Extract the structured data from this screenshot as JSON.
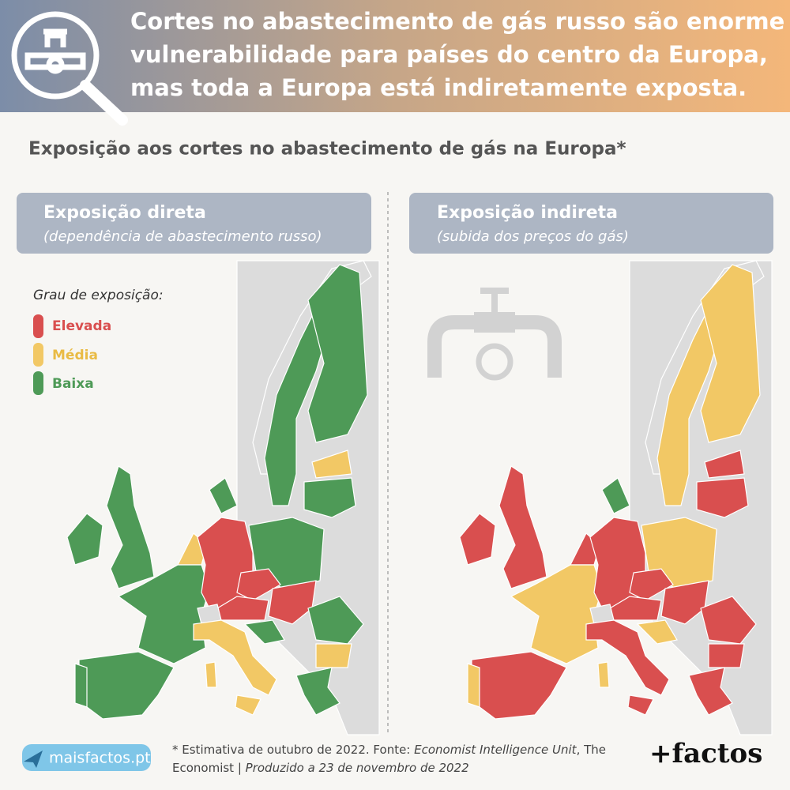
{
  "header": {
    "title_lines": [
      "Cortes no abastecimento de gás russo são enorme",
      "vulnerabilidade para países do centro da Europa,",
      "mas toda a Europa está indiretamente exposta."
    ]
  },
  "subtitle": "Exposição aos cortes no abastecimento de gás na Europa*",
  "panels": [
    {
      "title": "Exposição direta",
      "subtitle": "(dependência de abastecimento russo)"
    },
    {
      "title": "Exposição indireta",
      "subtitle": "(subida dos preços do gás)"
    }
  ],
  "legend": {
    "title": "Grau de exposição:",
    "items": [
      "Elevada",
      "Média",
      "Baixa"
    ]
  },
  "footer": {
    "note": [
      "* Estimativa de outubro de 2022. Fonte: ",
      "Economist Intelligence Unit",
      ", The Economist | ",
      "Produzido a 23 de novembro de 2022"
    ],
    "site": "maisfactos.pt",
    "brand": "+factos"
  }
}
